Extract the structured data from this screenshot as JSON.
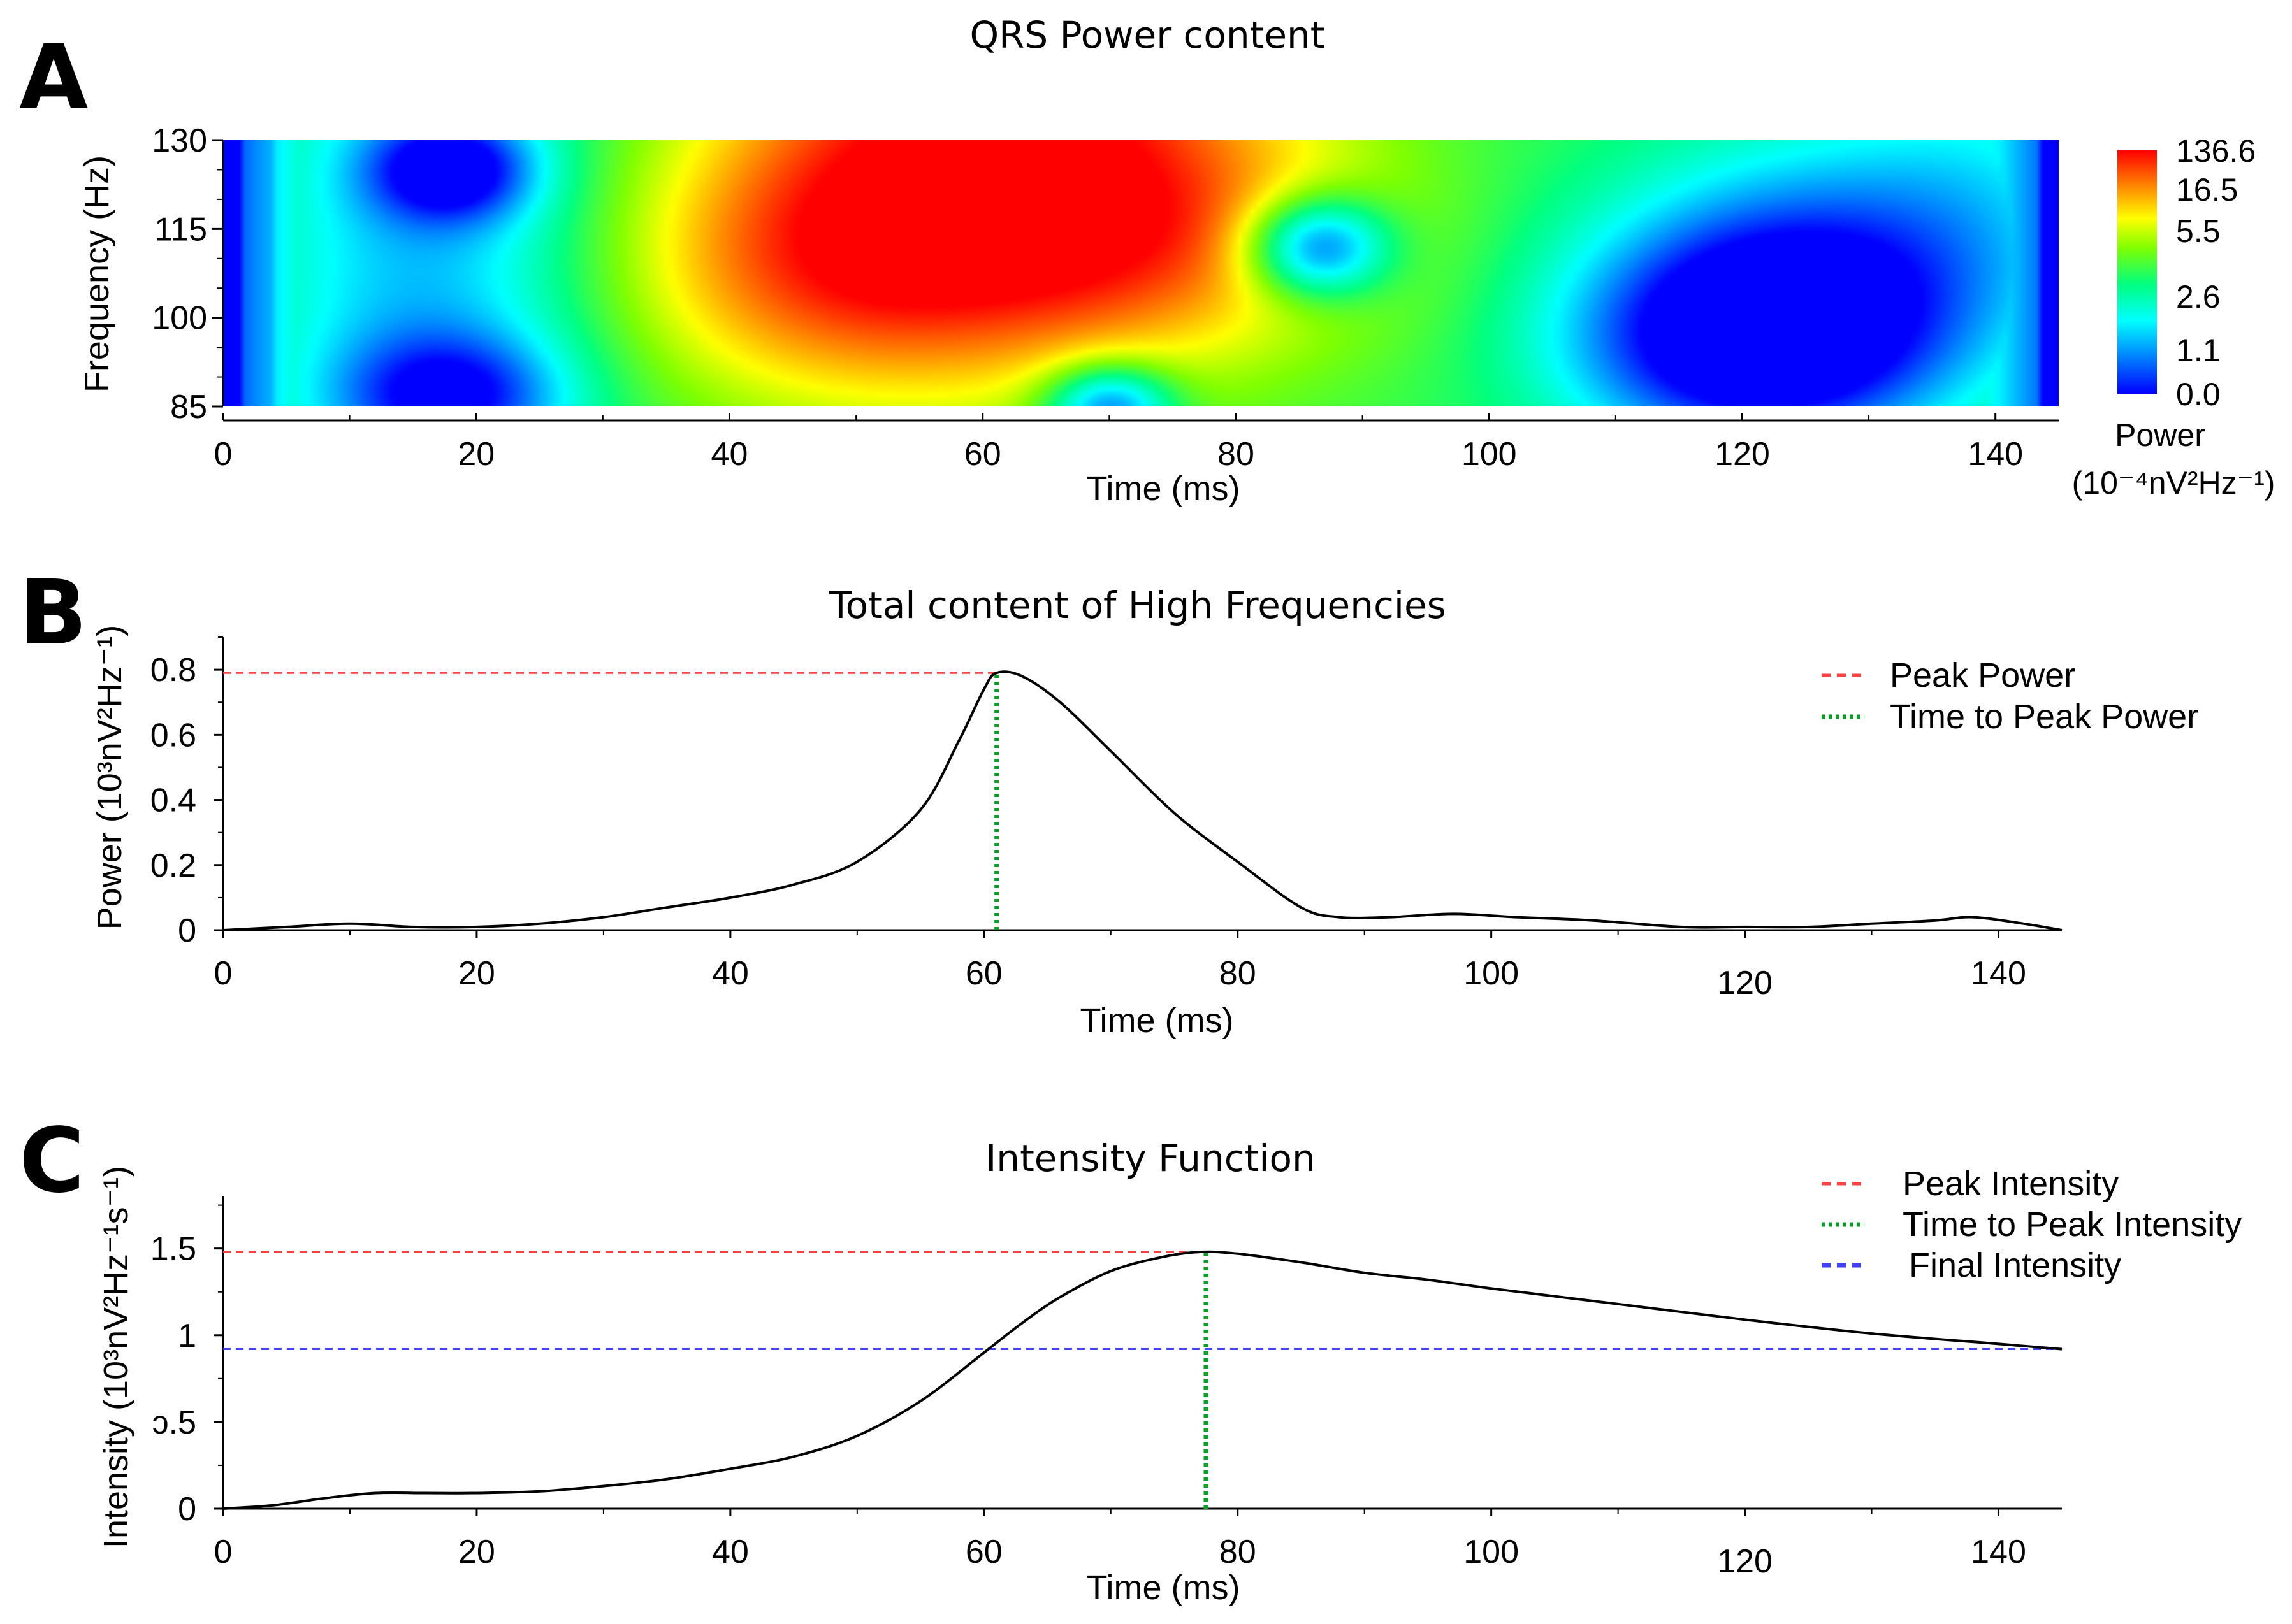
{
  "chart_data": [
    {
      "panel": "A",
      "type": "heatmap",
      "title": "QRS Power content",
      "xlabel": "Time (ms)",
      "ylabel": "Frequency (Hz)",
      "xlim": [
        0,
        145
      ],
      "ylim": [
        85,
        130
      ],
      "x_ticks": [
        0,
        20,
        40,
        60,
        80,
        100,
        120,
        140
      ],
      "y_ticks": [
        85,
        100,
        115,
        130
      ],
      "colorbar": {
        "label": "Power",
        "units": "(10⁻⁴nV²Hz⁻¹)",
        "ticks": [
          "136.6",
          "16.5",
          "5.5",
          "2.6",
          "1.1",
          "0.0"
        ],
        "colors": [
          "#ff0000",
          "#ff8000",
          "#ffff00",
          "#80ff00",
          "#00ff80",
          "#00ffff",
          "#0080ff",
          "#0000ff"
        ]
      },
      "features": [
        {
          "kind": "high",
          "t": 62,
          "f": 128,
          "level": 1.0
        },
        {
          "kind": "high",
          "t": 50,
          "f": 112,
          "level": 0.8
        },
        {
          "kind": "low",
          "t": 18,
          "f": 125,
          "level": 0.0
        },
        {
          "kind": "low",
          "t": 18,
          "f": 88,
          "level": 0.05
        },
        {
          "kind": "low",
          "t": 70,
          "f": 86,
          "level": 0.05
        },
        {
          "kind": "low",
          "t": 86,
          "f": 112,
          "level": 0.0
        },
        {
          "kind": "low",
          "t": 121,
          "f": 98,
          "level": 0.0
        }
      ]
    },
    {
      "panel": "B",
      "type": "line",
      "title": "Total content of High Frequencies",
      "xlabel": "Time (ms)",
      "ylabel": "Power (10³nV²Hz⁻¹)",
      "xlim": [
        0,
        145
      ],
      "ylim": [
        0,
        0.9
      ],
      "x_ticks": [
        0,
        20,
        40,
        60,
        80,
        100,
        120,
        140
      ],
      "y_ticks": [
        0,
        0.2,
        0.4,
        0.6,
        0.8
      ],
      "y_tick_labels": [
        "0",
        "0.2",
        "0.4",
        "0.6",
        "0.8"
      ],
      "series": [
        {
          "x": [
            0,
            5,
            10,
            15,
            20,
            25,
            30,
            35,
            40,
            45,
            50,
            55,
            58,
            60,
            61,
            63,
            66,
            70,
            75,
            80,
            85,
            88,
            92,
            97,
            102,
            108,
            115,
            120,
            125,
            130,
            135,
            138,
            142,
            145
          ],
          "y": [
            0.0,
            0.01,
            0.02,
            0.01,
            0.01,
            0.02,
            0.04,
            0.07,
            0.1,
            0.14,
            0.21,
            0.37,
            0.58,
            0.74,
            0.79,
            0.78,
            0.7,
            0.55,
            0.36,
            0.21,
            0.07,
            0.04,
            0.04,
            0.05,
            0.04,
            0.03,
            0.01,
            0.01,
            0.01,
            0.02,
            0.03,
            0.04,
            0.02,
            0.0
          ]
        }
      ],
      "annotations": [
        {
          "name": "Peak Power",
          "style": "dashed",
          "color": "#ff4040",
          "y": 0.79,
          "to_x": 61
        },
        {
          "name": "Time to Peak Power",
          "style": "dotted",
          "color": "#00a020",
          "x": 61,
          "to_y": 0.79
        }
      ],
      "legend": "top-right"
    },
    {
      "panel": "C",
      "type": "line",
      "title": "Intensity Function",
      "xlabel": "Time (ms)",
      "ylabel": "Intensity (10³nV²Hz⁻¹s⁻¹)",
      "xlim": [
        0,
        145
      ],
      "ylim": [
        0,
        1.8
      ],
      "x_ticks": [
        0,
        20,
        40,
        60,
        80,
        100,
        120,
        140
      ],
      "y_ticks": [
        0,
        0.5,
        1,
        1.5
      ],
      "y_tick_labels": [
        "0",
        "ɔ.5",
        "1",
        "1.5"
      ],
      "series": [
        {
          "x": [
            0,
            4,
            8,
            12,
            16,
            20,
            25,
            30,
            35,
            40,
            45,
            50,
            55,
            60,
            63,
            66,
            70,
            74,
            77,
            80,
            85,
            90,
            95,
            100,
            110,
            120,
            130,
            140,
            145
          ],
          "y": [
            0.0,
            0.02,
            0.06,
            0.09,
            0.09,
            0.09,
            0.1,
            0.13,
            0.17,
            0.23,
            0.3,
            0.42,
            0.62,
            0.9,
            1.07,
            1.22,
            1.37,
            1.45,
            1.48,
            1.47,
            1.42,
            1.36,
            1.32,
            1.27,
            1.18,
            1.09,
            1.01,
            0.95,
            0.92
          ]
        }
      ],
      "annotations": [
        {
          "name": "Peak Intensity",
          "style": "dashed",
          "color": "#ff4040",
          "y": 1.48,
          "to_x": 77.5
        },
        {
          "name": "Time to Peak Intensity",
          "style": "dotted",
          "color": "#00a020",
          "x": 77.5,
          "to_y": 1.48
        },
        {
          "name": "Final Intensity",
          "style": "dashed",
          "color": "#4040ff",
          "y": 0.92,
          "to_x": 145
        }
      ],
      "legend": "top-right"
    }
  ],
  "labels": {
    "panel_a": "A",
    "panel_b": "B",
    "panel_c": "C"
  }
}
